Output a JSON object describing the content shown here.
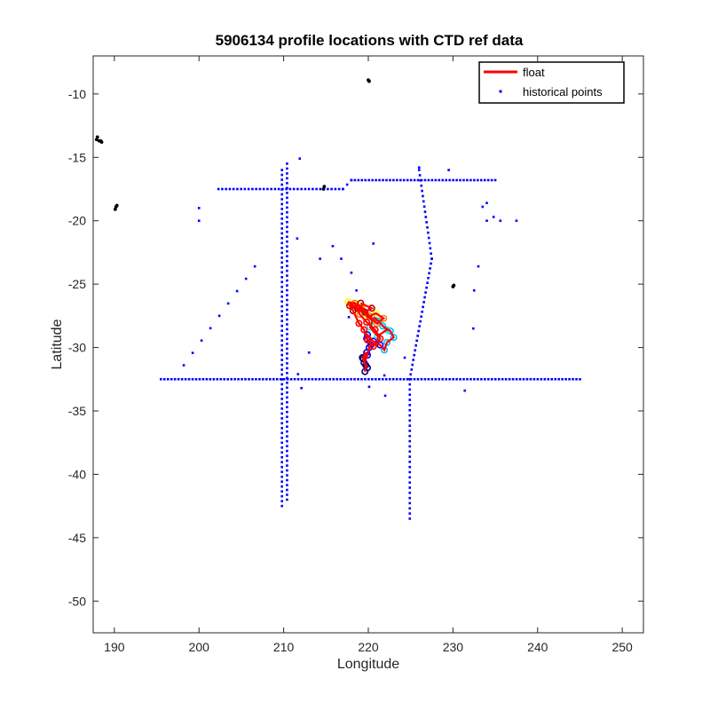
{
  "chart_data": {
    "type": "scatter",
    "title": "5906134 profile locations with CTD ref data",
    "xlabel": "Longitude",
    "ylabel": "Latitude",
    "xlim": [
      187.5,
      252.5
    ],
    "ylim": [
      -52.5,
      -7
    ],
    "xticks": [
      190,
      200,
      210,
      220,
      230,
      240,
      250
    ],
    "yticks": [
      -10,
      -15,
      -20,
      -25,
      -30,
      -35,
      -40,
      -45,
      -50
    ],
    "grid": false,
    "legend_position": "top-right",
    "legend": [
      "float",
      "historical points"
    ],
    "colors": {
      "float": "#ff0000",
      "historical": "#0000ff",
      "land": "#000000",
      "axis": "#262626",
      "float_track_palette": [
        "#00007f",
        "#0000ff",
        "#00bfff",
        "#00ffff",
        "#ffff00",
        "#ff8000",
        "#ff0000",
        "#b00000"
      ]
    },
    "series": [
      {
        "name": "float",
        "track_points": [
          [
            219.6,
            -31.9
          ],
          [
            219.7,
            -31.4
          ],
          [
            219.4,
            -30.9
          ],
          [
            219.8,
            -30.4
          ],
          [
            219.3,
            -30.8
          ],
          [
            219.9,
            -31.6
          ],
          [
            219.5,
            -31.2
          ],
          [
            219.9,
            -30.6
          ],
          [
            220.1,
            -30.0
          ],
          [
            220.3,
            -29.8
          ],
          [
            219.8,
            -29.3
          ],
          [
            219.9,
            -29.0
          ],
          [
            220.6,
            -29.5
          ],
          [
            221.4,
            -29.8
          ],
          [
            221.9,
            -30.2
          ],
          [
            222.2,
            -29.6
          ],
          [
            223.0,
            -29.2
          ],
          [
            222.6,
            -28.7
          ],
          [
            221.7,
            -28.3
          ],
          [
            221.2,
            -27.9
          ],
          [
            220.6,
            -27.6
          ],
          [
            221.3,
            -28.0
          ],
          [
            222.2,
            -28.6
          ],
          [
            221.1,
            -29.1
          ],
          [
            220.2,
            -28.4
          ],
          [
            220.5,
            -27.9
          ],
          [
            219.6,
            -27.3
          ],
          [
            218.8,
            -27.0
          ],
          [
            218.0,
            -26.6
          ],
          [
            217.6,
            -26.4
          ],
          [
            218.6,
            -26.6
          ],
          [
            219.3,
            -27.0
          ],
          [
            219.9,
            -27.6
          ],
          [
            220.9,
            -27.3
          ],
          [
            221.8,
            -27.7
          ],
          [
            221.0,
            -28.1
          ],
          [
            220.1,
            -27.5
          ],
          [
            219.2,
            -26.8
          ],
          [
            218.4,
            -26.5
          ],
          [
            219.0,
            -27.4
          ],
          [
            219.8,
            -28.0
          ],
          [
            220.8,
            -28.6
          ],
          [
            221.4,
            -29.3
          ],
          [
            220.6,
            -29.9
          ],
          [
            219.9,
            -29.4
          ],
          [
            219.5,
            -28.6
          ],
          [
            218.9,
            -28.1
          ],
          [
            218.2,
            -27.1
          ],
          [
            217.8,
            -26.7
          ],
          [
            218.7,
            -26.9
          ],
          [
            219.6,
            -27.2
          ],
          [
            220.4,
            -26.9
          ],
          [
            219.1,
            -26.5
          ]
        ]
      },
      {
        "name": "historical points",
        "lines": [
          {
            "from": [
              195.5,
              -32.5
            ],
            "to": [
              245.0,
              -32.5
            ],
            "n": 120
          },
          {
            "from": [
              202.3,
              -17.5
            ],
            "to": [
              217.0,
              -17.5
            ],
            "n": 34
          },
          {
            "from": [
              217.0,
              -17.5
            ],
            "to": [
              218.0,
              -16.8
            ],
            "n": 3
          },
          {
            "from": [
              218.0,
              -16.8
            ],
            "to": [
              235.0,
              -16.8
            ],
            "n": 42
          },
          {
            "from": [
              209.8,
              -16.0
            ],
            "to": [
              209.8,
              -42.5
            ],
            "n": 70
          },
          {
            "from": [
              210.4,
              -15.5
            ],
            "to": [
              210.4,
              -42.0
            ],
            "n": 70
          },
          {
            "from": [
              224.9,
              -32.5
            ],
            "to": [
              224.9,
              -43.5
            ],
            "n": 28
          },
          {
            "from": [
              224.9,
              -32.5
            ],
            "to": [
              227.5,
              -23.0
            ],
            "n": 26
          },
          {
            "from": [
              227.5,
              -23.0
            ],
            "to": [
              226.0,
              -16.0
            ],
            "n": 18
          },
          {
            "from": [
              198.2,
              -31.4
            ],
            "to": [
              206.6,
              -23.6
            ],
            "n": 9
          }
        ],
        "points": [
          [
            200.0,
            -19.0
          ],
          [
            200.0,
            -20.0
          ],
          [
            211.9,
            -15.1
          ],
          [
            211.6,
            -21.4
          ],
          [
            214.3,
            -23.0
          ],
          [
            215.8,
            -22.0
          ],
          [
            216.8,
            -23.0
          ],
          [
            218.0,
            -24.1
          ],
          [
            218.6,
            -25.5
          ],
          [
            217.7,
            -27.6
          ],
          [
            220.6,
            -21.8
          ],
          [
            211.7,
            -32.1
          ],
          [
            212.1,
            -33.2
          ],
          [
            220.1,
            -33.1
          ],
          [
            222.0,
            -33.8
          ],
          [
            224.3,
            -30.8
          ],
          [
            231.4,
            -33.4
          ],
          [
            232.4,
            -28.5
          ],
          [
            232.5,
            -25.5
          ],
          [
            233.0,
            -23.6
          ],
          [
            233.5,
            -18.9
          ],
          [
            234.0,
            -18.6
          ],
          [
            234.0,
            -20.0
          ],
          [
            234.8,
            -19.7
          ],
          [
            235.6,
            -20.0
          ],
          [
            237.5,
            -20.0
          ],
          [
            229.5,
            -16.0
          ],
          [
            226.0,
            -15.8
          ],
          [
            213.0,
            -30.4
          ],
          [
            221.9,
            -32.2
          ]
        ]
      }
    ],
    "land_points": [
      [
        187.9,
        -13.6
      ],
      [
        188.2,
        -13.7
      ],
      [
        188.5,
        -13.8
      ],
      [
        188.0,
        -13.4
      ],
      [
        188.4,
        -13.7
      ],
      [
        190.2,
        -18.9
      ],
      [
        190.1,
        -19.1
      ],
      [
        190.3,
        -18.8
      ],
      [
        220.0,
        -8.9
      ],
      [
        220.1,
        -9.0
      ],
      [
        214.8,
        -17.3
      ],
      [
        214.7,
        -17.5
      ],
      [
        230.1,
        -25.1
      ],
      [
        230.0,
        -25.2
      ]
    ]
  }
}
